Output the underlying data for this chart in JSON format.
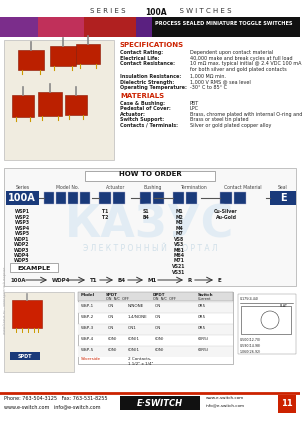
{
  "page_bg": "#ffffff",
  "header_bg": "#1a3a7a",
  "accent_red": "#cc2200",
  "dark_text": "#222222",
  "spec_title": "SPECIFICATIONS",
  "spec_items": [
    [
      "Contact Rating:",
      "Dependent upon contact material"
    ],
    [
      "Electrical Life:",
      "40,000 make and break cycles at full load"
    ],
    [
      "Contact Resistance:",
      "10 mΩ max. typical initial @ 2.4 VDC 100 mA"
    ],
    [
      "",
      "for both silver and gold plated contacts"
    ],
    [
      "",
      ""
    ],
    [
      "Insulation Resistance:",
      "1,000 MΩ min."
    ],
    [
      "Dielectric Strength:",
      "1,000 V RMS @ sea level"
    ],
    [
      "Operating Temperature:",
      "-30° C to 85° C"
    ]
  ],
  "mat_title": "MATERIALS",
  "mat_items": [
    [
      "Case & Bushing:",
      "PBT"
    ],
    [
      "Pedestal of Cover:",
      "LPC"
    ],
    [
      "Actuator:",
      "Brass, chrome plated with internal O-ring and"
    ],
    [
      "Switch Support:",
      "Brass or steel tin plated"
    ],
    [
      "Contacts / Terminals:",
      "Silver or gold plated copper alloy"
    ]
  ],
  "how_to_order": "HOW TO ORDER",
  "order_headers": [
    "Series",
    "Model No.",
    "Actuator",
    "Bushing",
    "Termination",
    "Contact Material",
    "Seal"
  ],
  "order_series": "100A",
  "order_seal": "E",
  "model_list": [
    "WSP1",
    "WSP2",
    "WSP3",
    "WSP4",
    "WSP5",
    "WDP1",
    "WDP2",
    "WDP3",
    "WDP4",
    "WDP5"
  ],
  "actuator_list": [
    "T1",
    "T2"
  ],
  "bushing_list": [
    "S1",
    "B4"
  ],
  "termination_list": [
    "M1",
    "M2",
    "M3",
    "M4",
    "M7",
    "VS8",
    "VS3",
    "M61",
    "M64",
    "M71",
    "VS21",
    "VS31"
  ],
  "contact_list": [
    "Cu-Silver",
    "Au-Gold"
  ],
  "example_label": "EXAMPLE",
  "example_parts": [
    "100A",
    "WDP4",
    "T1",
    "B4",
    "M1",
    "R",
    "E"
  ],
  "footer_phone": "Phone: 763-504-3125   Fax: 763-531-8255",
  "footer_web": "www.e-switch.com   info@e-switch.com",
  "footer_page": "11",
  "strip_colors": [
    "#7b2d8b",
    "#c0305a",
    "#b02020",
    "#5a2080",
    "#2a8a3a",
    "#3aaa4a"
  ],
  "strip_widths": [
    38,
    46,
    52,
    48,
    58,
    58
  ],
  "table_models": [
    "WSP-1",
    "WSP-2",
    "WSP-3",
    "WSP-4",
    "WSP-5"
  ],
  "table_spdt": [
    "ON",
    "ON",
    "ON",
    "(ON)",
    "(ON)"
  ],
  "table_nc1": [
    "N/NONE",
    "1-4/NONE",
    "ON1",
    "(ON)1",
    "(ON)1"
  ],
  "table_dpdt": [
    "ON",
    "ON",
    "ON",
    "(ON)",
    "(ON)"
  ],
  "watermark1": "Э Л Е К Т Р О Н Н Ы Й   П О Р Т А Л"
}
